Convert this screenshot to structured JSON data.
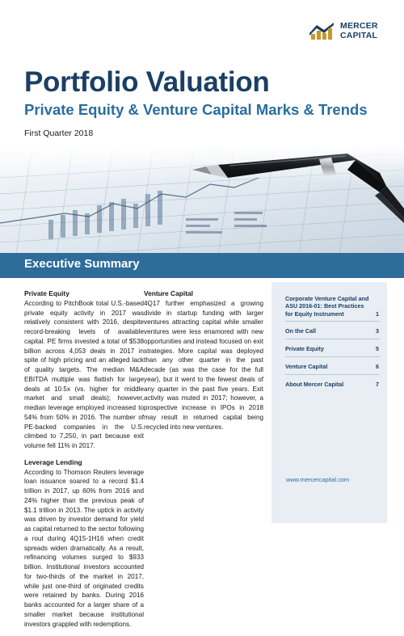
{
  "logo": {
    "line1": "MERCER",
    "line2": "CAPITAL"
  },
  "title": "Portfolio Valuation",
  "subtitle": "Private Equity & Venture Capital Marks & Trends",
  "date": "First Quarter 2018",
  "section_title": "Executive Summary",
  "body": {
    "pe_heading": "Private Equity",
    "pe_text": "According to PitchBook total U.S.-based private equity activity in 2017 was relatively consistent with 2016, despite record-breaking levels of available capital. PE firms invested a total of $538 billion across 4,053 deals in 2017 in spite of high pricing and an alleged lack of quality targets. The median M&A EBITDA multiple was flattish for large deals at 10.5x (vs. higher for middle market and small deals); however, median leverage employed increased to 54% from 50% in 2016. The number of PE-backed companies in the U.S. climbed to 7,250, in part because exit volume fell 11% in 2017.",
    "ll_heading": "Leverage Lending",
    "ll_text": "According to Thomson Reuters leverage loan issuance soared to a record $1.4 trillion in 2017, up 60% from 2016 and 24% higher than the previous peak of $1.1 trillion in 2013. The uptick in activity was driven by investor demand for yield as capital returned to the sector following a rout during 4Q15-1H16 when credit spreads widen dramatically. As a result, refinancing volumes surged to $933 billion. Institutional investors accounted for two-thirds of the market in 2017, while just one-third of originated credits were retained by banks. During 2016 banks accounted for a larger share of a smaller market because institutional investors grappled with redemptions.",
    "vc_heading": "Venture Capital",
    "vc_text": "4Q17 further emphasized a growing divide in startup funding with larger ventures attracting capital while smaller ventures were less enamored with new opportunities and instead focused on exit strategies. More capital was deployed than any other quarter in the past decade (as was the case for the full year), but it went to the fewest deals of any quarter in the past five years. Exit activity was muted in 2017; however, a prospective increase in IPOs in 2018 may result in returned capital being recycled into new ventures."
  },
  "toc": {
    "items": [
      {
        "label": "Corporate Venture Capital and ASU 2016-01: Best Practices for Equity Instrument",
        "page": "1"
      },
      {
        "label": "On the Call",
        "page": "3"
      },
      {
        "label": "Private Equity",
        "page": "5"
      },
      {
        "label": "Venture Capital",
        "page": "6"
      },
      {
        "label": "About Mercer Capital",
        "page": "7"
      }
    ],
    "url": "www.mercercapital.com"
  }
}
